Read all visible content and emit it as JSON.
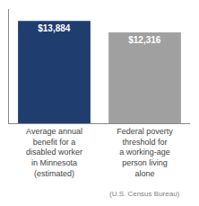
{
  "chart_data": {
    "type": "bar",
    "categories": [
      "Average annual\nbenefit for a\ndisabled worker\nin Minnesota\n(estimated)",
      "Federal poverty\nthreshold for\na working-age\nperson living\nalone"
    ],
    "values": [
      13884,
      12316
    ],
    "value_labels": [
      "$13,884",
      "$12,316"
    ],
    "data_labels": true,
    "colors": [
      "#1f3d6e",
      "#a0a0a0"
    ],
    "ylim": [
      0,
      15500
    ],
    "yticks": [],
    "grid": false,
    "tick_labels": "x",
    "annotations": [
      {
        "text": "(U.S. Census Bureau)",
        "x": "Federal poverty\nthreshold for\na working-age\nperson living\nalone"
      }
    ]
  }
}
